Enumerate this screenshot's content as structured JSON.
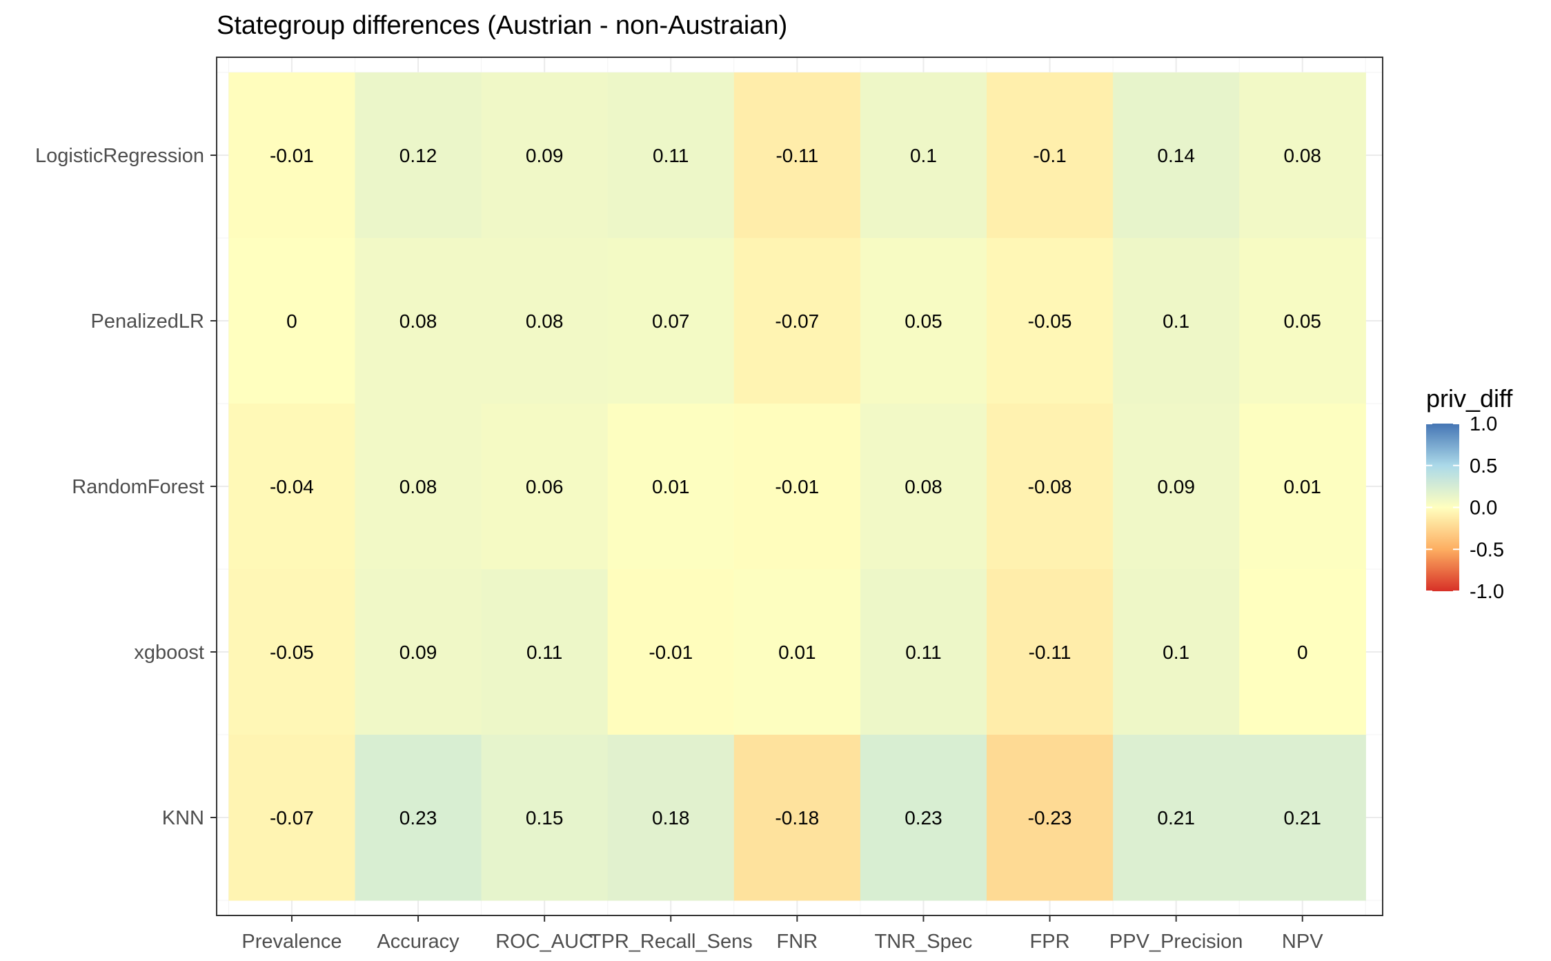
{
  "chart_data": {
    "type": "heatmap",
    "title": "Stategroup differences (Austrian - non-Austraian)",
    "xlabel": "",
    "ylabel": "",
    "x_categories": [
      "Prevalence",
      "Accuracy",
      "ROC_AUC",
      "TPR_Recall_Sens",
      "FNR",
      "TNR_Spec",
      "FPR",
      "PPV_Precision",
      "NPV"
    ],
    "y_categories": [
      "LogisticRegression",
      "PenalizedLR",
      "RandomForest",
      "xgboost",
      "KNN"
    ],
    "values": [
      [
        -0.01,
        0.12,
        0.09,
        0.11,
        -0.11,
        0.1,
        -0.1,
        0.14,
        0.08
      ],
      [
        0,
        0.08,
        0.08,
        0.07,
        -0.07,
        0.05,
        -0.05,
        0.1,
        0.05
      ],
      [
        -0.04,
        0.08,
        0.06,
        0.01,
        -0.01,
        0.08,
        -0.08,
        0.09,
        0.01
      ],
      [
        -0.05,
        0.09,
        0.11,
        -0.01,
        0.01,
        0.11,
        -0.11,
        0.1,
        0
      ],
      [
        -0.07,
        0.23,
        0.15,
        0.18,
        -0.18,
        0.23,
        -0.23,
        0.21,
        0.21
      ]
    ],
    "cell_labels": [
      [
        "-0.01",
        "0.12",
        "0.09",
        "0.11",
        "-0.11",
        "0.1",
        "-0.1",
        "0.14",
        "0.08"
      ],
      [
        "0",
        "0.08",
        "0.08",
        "0.07",
        "-0.07",
        "0.05",
        "-0.05",
        "0.1",
        "0.05"
      ],
      [
        "-0.04",
        "0.08",
        "0.06",
        "0.01",
        "-0.01",
        "0.08",
        "-0.08",
        "0.09",
        "0.01"
      ],
      [
        "-0.05",
        "0.09",
        "0.11",
        "-0.01",
        "0.01",
        "0.11",
        "-0.11",
        "0.1",
        "0"
      ],
      [
        "-0.07",
        "0.23",
        "0.15",
        "0.18",
        "-0.18",
        "0.23",
        "-0.23",
        "0.21",
        "0.21"
      ]
    ],
    "legend": {
      "title": "priv_diff",
      "position": "right",
      "limits": [
        -1.0,
        1.0
      ],
      "ticks": [
        "1.0",
        "0.5",
        "0.0",
        "-0.5",
        "-1.0"
      ],
      "tick_values": [
        1.0,
        0.5,
        0.0,
        -0.5,
        -1.0
      ]
    },
    "colorscale": {
      "low": "#d73027",
      "low_mid": "#fdae61",
      "mid": "#ffffbf",
      "high_mid": "#abd9e9",
      "high": "#4575b4"
    },
    "grid": true,
    "panel_border": true
  }
}
